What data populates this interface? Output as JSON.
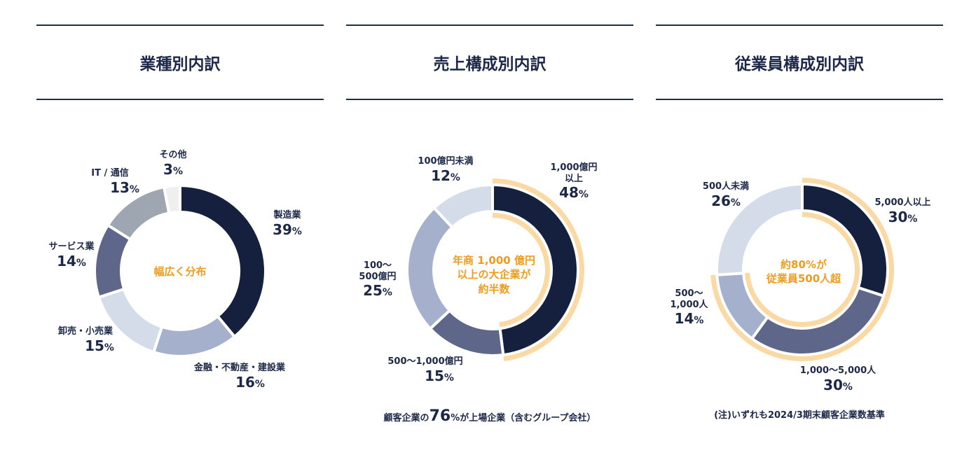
{
  "charts": [
    {
      "title": "業種別内訳",
      "center_text": "幅広く分布",
      "note": "",
      "chart_data": {
        "type": "pie",
        "title": "業種別内訳",
        "categories": [
          "製造業",
          "金融・不動産・建設業",
          "卸売・小売業",
          "サービス業",
          "IT / 通信",
          "その他"
        ],
        "values": [
          39,
          16,
          15,
          14,
          13,
          3
        ],
        "unit": "%",
        "colors": [
          "#15203e",
          "#a5b1cc",
          "#d4dbe9",
          "#5e6789",
          "#9ea6b1",
          "#efefef"
        ]
      }
    },
    {
      "title": "売上構成別内訳",
      "center_text": "年商 1,000 億円\n以上の大企業が\n約半数",
      "note_prefix": "顧客企業の",
      "note_number": "76",
      "note_suffix": "%が上場企業（含むグループ会社）",
      "chart_data": {
        "type": "pie",
        "title": "売上構成別内訳",
        "categories": [
          "1,000億円以上",
          "500〜1,000億円",
          "100〜500億円",
          "100億円未満"
        ],
        "values": [
          48,
          15,
          25,
          12
        ],
        "unit": "%",
        "highlighted": [
          "1,000億円以上"
        ],
        "colors": [
          "#15203e",
          "#5e6789",
          "#a5b1cc",
          "#d4dbe9"
        ]
      }
    },
    {
      "title": "従業員構成別内訳",
      "center_text": "約80%が\n従業員500人超",
      "note": "(注)いずれも2024/3期末顧客企業数基準",
      "chart_data": {
        "type": "pie",
        "title": "従業員構成別内訳",
        "categories": [
          "5,000人以上",
          "1,000〜5,000人",
          "500〜1,000人",
          "500人未満"
        ],
        "values": [
          30,
          30,
          14,
          26
        ],
        "unit": "%",
        "highlighted": [
          "5,000人以上",
          "1,000〜5,000人",
          "500〜1,000人"
        ],
        "colors": [
          "#15203e",
          "#5e6789",
          "#a5b1cc",
          "#d4dbe9"
        ]
      }
    }
  ],
  "highlight_color": "#fbd9a4"
}
